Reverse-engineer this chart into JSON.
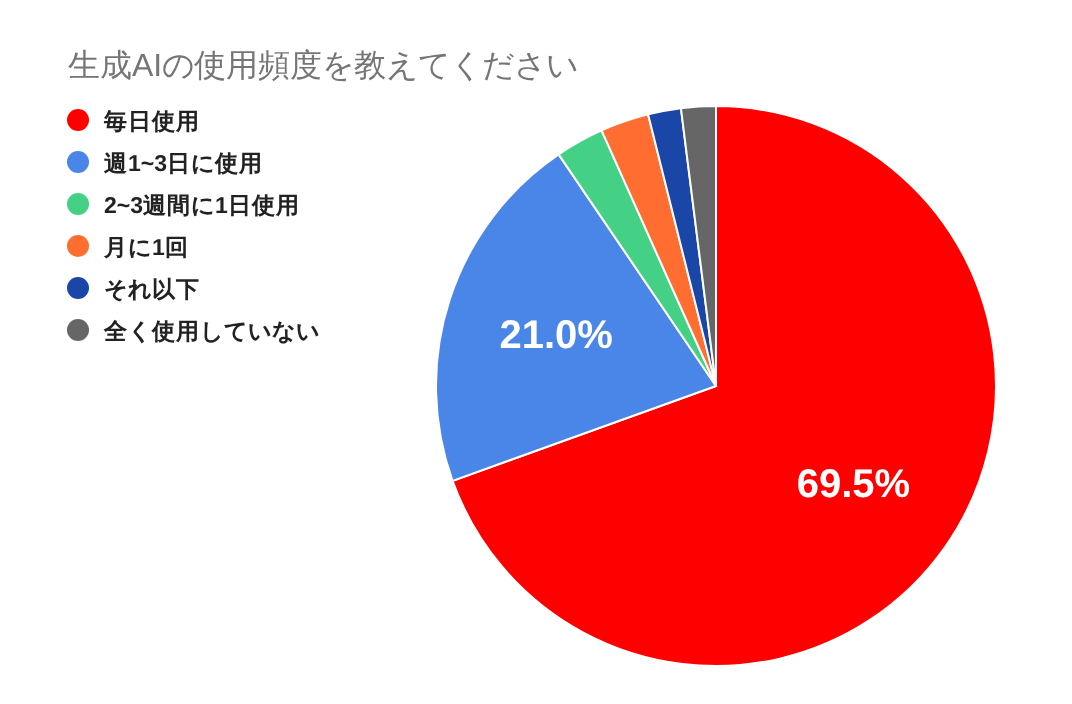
{
  "chart_data": {
    "type": "pie",
    "title": "生成AIの使用頻度を教えてください",
    "categories": [
      "毎日使用",
      "週1~3日に使用",
      "2~3週間に1日使用",
      "月に1回",
      "それ以下",
      "全く使用していない"
    ],
    "values": [
      69.5,
      21.0,
      2.8,
      2.8,
      1.9,
      2.0
    ],
    "colors": [
      "#ff0000",
      "#4a86e8",
      "#45d185",
      "#ff6d31",
      "#1a46a8",
      "#666666"
    ],
    "value_labels": [
      "69.5%",
      "21.0%",
      null,
      null,
      null,
      null
    ],
    "legend": "left"
  }
}
